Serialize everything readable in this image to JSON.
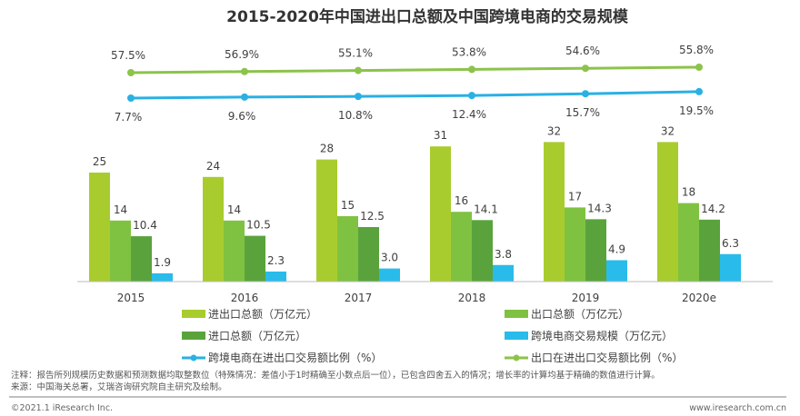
{
  "chart_data": {
    "type": "bar",
    "title": "2015-2020年中国进出口总额及中国跨境电商的交易规模",
    "categories": [
      "2015",
      "2016",
      "2017",
      "2018",
      "2019",
      "2020e"
    ],
    "series": [
      {
        "name": "进出口总额（万亿元）",
        "type": "bar",
        "color": "#a8cc2e",
        "values": [
          25,
          24,
          28,
          31,
          32,
          32
        ]
      },
      {
        "name": "出口总额（万亿元）",
        "type": "bar",
        "color": "#7fc241",
        "values": [
          14,
          14,
          15,
          16,
          17,
          18
        ]
      },
      {
        "name": "进口总额（万亿元）",
        "type": "bar",
        "color": "#5aa33c",
        "values": [
          10.4,
          10.5,
          12.5,
          14.1,
          14.3,
          14.2
        ]
      },
      {
        "name": "跨境电商交易规模（万亿元）",
        "type": "bar",
        "color": "#29bbea",
        "values": [
          1.9,
          2.3,
          3.0,
          3.8,
          4.9,
          6.3
        ]
      },
      {
        "name": "跨境电商在进出口交易额比例（%）",
        "type": "line",
        "color": "#2ab0e4",
        "values": [
          7.7,
          9.6,
          10.8,
          12.4,
          15.7,
          19.5
        ],
        "labels": [
          "7.7%",
          "9.6%",
          "10.8%",
          "12.4%",
          "15.7%",
          "19.5%"
        ]
      },
      {
        "name": "出口在进出口交易额比例（%）",
        "type": "line",
        "color": "#8cc34b",
        "values": [
          57.5,
          56.9,
          55.1,
          53.8,
          54.6,
          55.8
        ],
        "labels": [
          "57.5%",
          "56.9%",
          "55.1%",
          "53.8%",
          "54.6%",
          "55.8%"
        ]
      }
    ],
    "bar_labels": [
      [
        "25",
        "14",
        "10.4",
        "1.9"
      ],
      [
        "24",
        "14",
        "10.5",
        "2.3"
      ],
      [
        "28",
        "15",
        "12.5",
        "3.0"
      ],
      [
        "31",
        "16",
        "14.1",
        "3.8"
      ],
      [
        "32",
        "17",
        "14.3",
        "4.9"
      ],
      [
        "32",
        "18",
        "14.2",
        "6.3"
      ]
    ],
    "legend_position": "bottom",
    "grid": false
  },
  "notes": {
    "note": "注释：报告所列规模历史数据和预测数据均取整数位（特殊情况：差值小于1时精确至小数点后一位），已包含四舍五入的情况；增长率的计算均基于精确的数值进行计算。",
    "source": "来源：中国海关总署，艾瑞咨询研究院自主研究及绘制。"
  },
  "footer": {
    "copyright": "©2021.1 iResearch Inc.",
    "website": "www.iresearch.com.cn"
  }
}
